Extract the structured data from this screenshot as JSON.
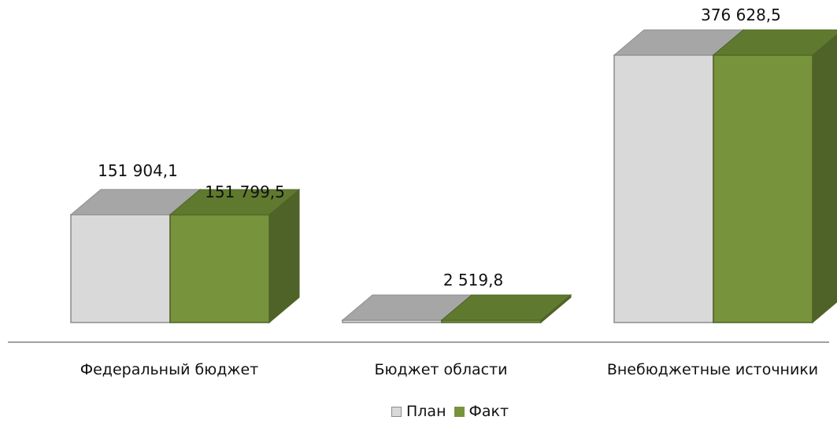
{
  "chart_data": {
    "type": "bar",
    "categories": [
      "Федеральный бюджет",
      "Бюджет области",
      "Внебюджетные источники"
    ],
    "series": [
      {
        "name": "План",
        "values": [
          151904.1,
          0,
          376628.5
        ]
      },
      {
        "name": "Факт",
        "values": [
          151799.5,
          2519.8,
          376628.5
        ]
      }
    ],
    "data_labels": [
      {
        "category": 0,
        "series": 0,
        "text": "151 904,1"
      },
      {
        "category": 0,
        "series": 1,
        "text": "151 799,5"
      },
      {
        "category": 1,
        "series": 1,
        "text": "2 519,8"
      },
      {
        "category": 2,
        "series": 1,
        "text": "376 628,5"
      }
    ],
    "ylim": [
      0,
      376628.5
    ],
    "legend_position": "bottom",
    "colors": {
      "plan_front": "#d9d9d9",
      "plan_top": "#a6a6a6",
      "plan_side": "#bfbfbf",
      "fact_front": "#77933c",
      "fact_top": "#5f7a2e",
      "fact_side": "#4f6228",
      "edge_plan": "#8c8c8c",
      "edge_fact": "#4f6228",
      "axis": "#808080"
    }
  },
  "legend": {
    "items": [
      {
        "label": "План",
        "color": "#d9d9d9"
      },
      {
        "label": "Факт",
        "color": "#77933c"
      }
    ]
  }
}
